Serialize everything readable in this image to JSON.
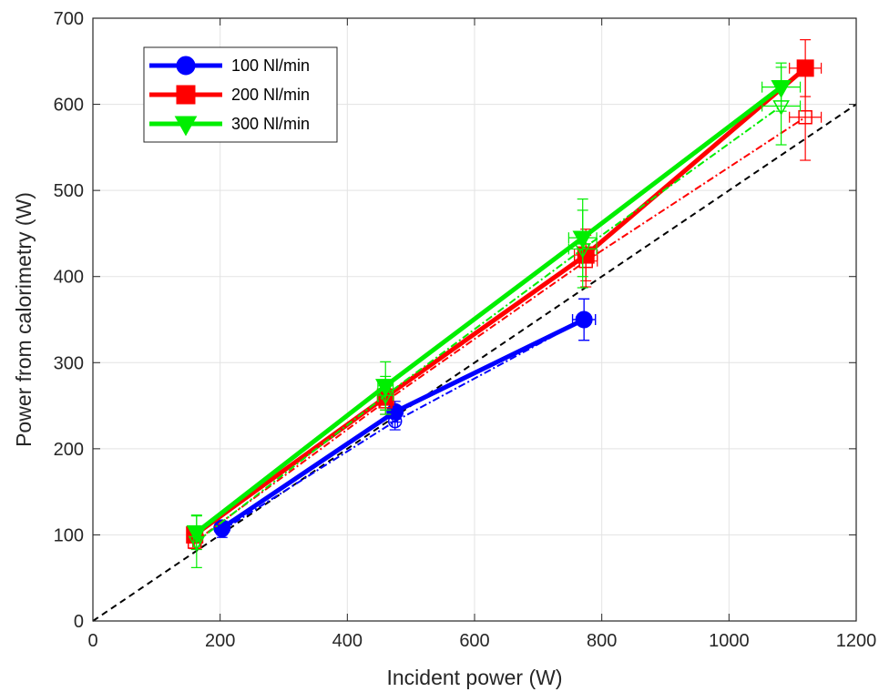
{
  "chart_data": {
    "type": "line",
    "xlabel": "Incident power (W)",
    "ylabel": "Power from calorimetry (W)",
    "xlim": [
      0,
      1200
    ],
    "ylim": [
      0,
      700
    ],
    "xticks": [
      0,
      200,
      400,
      600,
      800,
      1000,
      1200
    ],
    "yticks": [
      0,
      100,
      200,
      300,
      400,
      500,
      600,
      700
    ],
    "grid": true,
    "legend_position": "top-left",
    "reference_line": {
      "x": [
        0,
        1200
      ],
      "y": [
        0,
        600
      ],
      "style": "dashed",
      "color": "#000000"
    },
    "series": [
      {
        "name": "100 Nl/min",
        "color": "#0000ff",
        "marker": "circle",
        "style": "solid",
        "x": [
          203,
          475,
          772
        ],
        "y": [
          108,
          243,
          350
        ],
        "xerr": [
          3,
          4,
          18
        ],
        "yerr": [
          8,
          12,
          24
        ]
      },
      {
        "color": "#0000ff",
        "marker": "circle-open",
        "style": "dashdot",
        "x": [
          203,
          475,
          772
        ],
        "y": [
          105,
          232,
          350
        ],
        "xerr": [
          3,
          4,
          18
        ],
        "yerr": [
          8,
          10,
          24
        ]
      },
      {
        "name": "200 Nl/min",
        "color": "#ff0000",
        "marker": "square",
        "style": "solid",
        "x": [
          160,
          460,
          775,
          1120
        ],
        "y": [
          100,
          260,
          425,
          642
        ],
        "xerr": [
          3,
          8,
          18,
          25
        ],
        "yerr": [
          8,
          15,
          30,
          33
        ]
      },
      {
        "color": "#ff0000",
        "marker": "square-open",
        "style": "dashdot",
        "x": [
          160,
          460,
          775,
          1120
        ],
        "y": [
          92,
          255,
          418,
          585
        ],
        "xerr": [
          3,
          8,
          18,
          25
        ],
        "yerr": [
          8,
          15,
          30,
          50
        ]
      },
      {
        "name": "300 Nl/min",
        "color": "#00ee00",
        "marker": "triangle-down",
        "style": "solid",
        "x": [
          163,
          460,
          770,
          1082
        ],
        "y": [
          103,
          273,
          445,
          620
        ],
        "xerr": [
          5,
          12,
          22,
          30
        ],
        "yerr": [
          20,
          28,
          45,
          28
        ]
      },
      {
        "color": "#00ee00",
        "marker": "triangle-down-open",
        "style": "dashdot",
        "x": [
          163,
          460,
          770,
          1082
        ],
        "y": [
          92,
          262,
          432,
          598
        ],
        "xerr": [
          5,
          12,
          22,
          30
        ],
        "yerr": [
          30,
          22,
          45,
          45
        ]
      }
    ]
  }
}
